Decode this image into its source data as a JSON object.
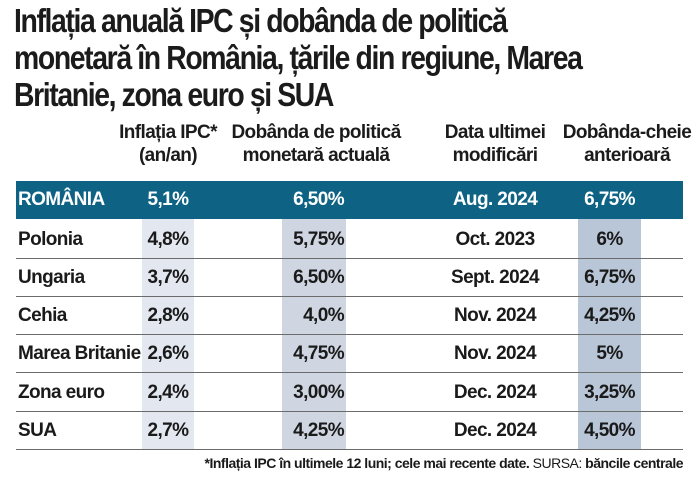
{
  "title": {
    "line1": "Inflația anuală IPC și dobânda de politică",
    "line2": "monetară în România, țările din regiune, Marea",
    "line3": "Britanie, zona euro și SUA"
  },
  "columns": [
    {
      "line1": "Inflația IPC*",
      "line2": "(an/an)"
    },
    {
      "line1": "Dobânda de politică",
      "line2": "monetară actuală"
    },
    {
      "line1": "Data ultimei",
      "line2": "modificări"
    },
    {
      "line1": "Dobânda-cheie",
      "line2": "anterioară"
    }
  ],
  "highlight_row": {
    "country": "ROMÂNIA",
    "inflation": "5,1%",
    "policy_rate": "6,50%",
    "last_change": "Aug. 2024",
    "previous_rate": "6,75%"
  },
  "rows": [
    {
      "country": "Polonia",
      "inflation": "4,8%",
      "policy_rate": "5,75%",
      "last_change": "Oct. 2023",
      "previous_rate": "6%"
    },
    {
      "country": "Ungaria",
      "inflation": "3,7%",
      "policy_rate": "6,50%",
      "last_change": "Sept. 2024",
      "previous_rate": "6,75%"
    },
    {
      "country": "Cehia",
      "inflation": "2,8%",
      "policy_rate": "4,0%",
      "last_change": "Nov. 2024",
      "previous_rate": "4,25%"
    },
    {
      "country": "Marea Britanie",
      "inflation": "2,6%",
      "policy_rate": "4,75%",
      "last_change": "Nov. 2024",
      "previous_rate": "5%"
    },
    {
      "country": "Zona euro",
      "inflation": "2,4%",
      "policy_rate": "3,00%",
      "last_change": "Dec. 2024",
      "previous_rate": "3,25%"
    },
    {
      "country": "SUA",
      "inflation": "2,7%",
      "policy_rate": "4,25%",
      "last_change": "Dec. 2024",
      "previous_rate": "4,50%"
    }
  ],
  "footnote": {
    "note": "*Inflația IPC în ultimele 12 luni; cele mai recente date.",
    "source_label": " SURSA: ",
    "source": "băncile centrale"
  },
  "colors": {
    "banner": "#0e6385",
    "shade_inflation": "#e2e7f0",
    "shade_policy": "#cfd6e2",
    "shade_previous": "#b9c6d7"
  }
}
